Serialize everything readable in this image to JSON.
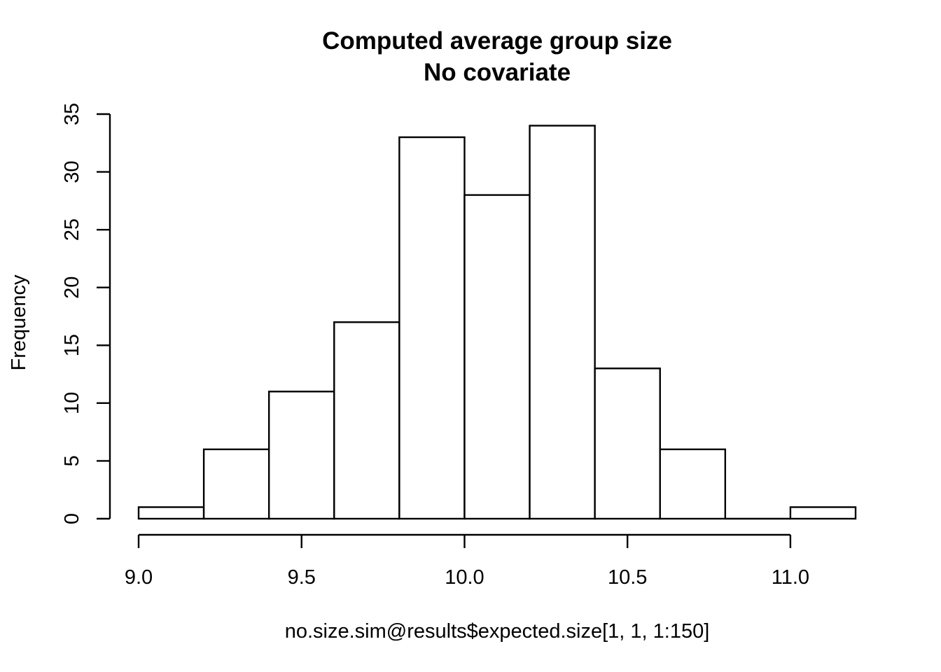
{
  "chart_data": {
    "type": "bar",
    "subtype": "histogram",
    "title": "Computed average group size",
    "subtitle": "No covariate",
    "xlabel": "no.size.sim@results$expected.size[1, 1, 1:150]",
    "ylabel": "Frequency",
    "bins": [
      {
        "start": 9.0,
        "end": 9.2,
        "count": 1
      },
      {
        "start": 9.2,
        "end": 9.4,
        "count": 6
      },
      {
        "start": 9.4,
        "end": 9.6,
        "count": 11
      },
      {
        "start": 9.6,
        "end": 9.8,
        "count": 17
      },
      {
        "start": 9.8,
        "end": 10.0,
        "count": 33
      },
      {
        "start": 10.0,
        "end": 10.2,
        "count": 28
      },
      {
        "start": 10.2,
        "end": 10.4,
        "count": 34
      },
      {
        "start": 10.4,
        "end": 10.6,
        "count": 13
      },
      {
        "start": 10.6,
        "end": 10.8,
        "count": 6
      },
      {
        "start": 10.8,
        "end": 11.0,
        "count": 0
      },
      {
        "start": 11.0,
        "end": 11.2,
        "count": 1
      }
    ],
    "xlim": [
      9.0,
      11.2
    ],
    "ylim": [
      0,
      35
    ],
    "x_ticks": [
      {
        "value": 9.0,
        "label": "9.0"
      },
      {
        "value": 9.5,
        "label": "9.5"
      },
      {
        "value": 10.0,
        "label": "10.0"
      },
      {
        "value": 10.5,
        "label": "10.5"
      },
      {
        "value": 11.0,
        "label": "11.0"
      }
    ],
    "y_ticks": [
      {
        "value": 0,
        "label": "0"
      },
      {
        "value": 5,
        "label": "5"
      },
      {
        "value": 10,
        "label": "10"
      },
      {
        "value": 15,
        "label": "15"
      },
      {
        "value": 20,
        "label": "20"
      },
      {
        "value": 25,
        "label": "25"
      },
      {
        "value": 30,
        "label": "30"
      },
      {
        "value": 35,
        "label": "35"
      }
    ],
    "grid": false,
    "legend": "none",
    "bar_fill": "#ffffff",
    "bar_stroke": "#000000"
  }
}
